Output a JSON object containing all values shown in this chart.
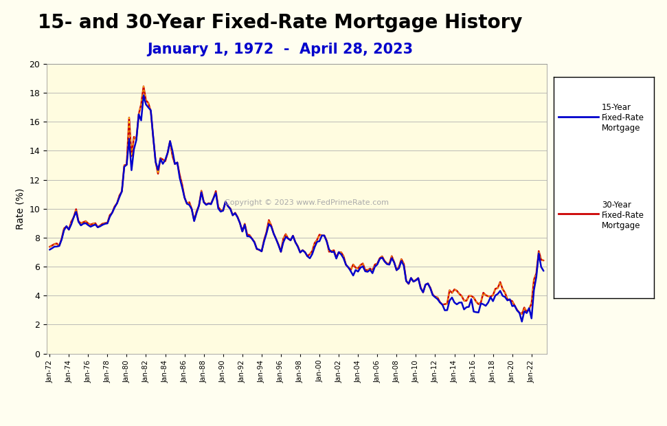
{
  "title": "15- and 30-Year Fixed-Rate Mortgage History",
  "subtitle": "January 1, 1972  -  April 28, 2023",
  "ylabel": "Rate (%)",
  "background_color": "#FFFEF0",
  "plot_bg_color": "#FFFCE0",
  "title_fontsize": 20,
  "subtitle_fontsize": 15,
  "subtitle_color": "#0000CC",
  "ylabel_fontsize": 10,
  "copyright_text": "Copyright © 2023 www.FedPrimeRate.com",
  "ylim": [
    0,
    20
  ],
  "yticks": [
    0,
    2,
    4,
    6,
    8,
    10,
    12,
    14,
    16,
    18,
    20
  ],
  "color_15yr": "#0000CC",
  "color_30yr": "#CC0000",
  "color_30yr_dots": "#FFD700",
  "legend_15yr": "15-Year\nFixed-Rate\nMortgage",
  "legend_30yr": "30-Year\nFixed-Rate\nMortgage",
  "data_15yr": [
    [
      1972,
      1,
      7.17
    ],
    [
      1972,
      4,
      7.27
    ],
    [
      1972,
      7,
      7.38
    ],
    [
      1972,
      10,
      7.39
    ],
    [
      1973,
      1,
      7.43
    ],
    [
      1973,
      4,
      7.87
    ],
    [
      1973,
      7,
      8.52
    ],
    [
      1973,
      10,
      8.8
    ],
    [
      1974,
      1,
      8.56
    ],
    [
      1974,
      4,
      8.92
    ],
    [
      1974,
      7,
      9.41
    ],
    [
      1974,
      10,
      9.79
    ],
    [
      1975,
      1,
      9.1
    ],
    [
      1975,
      4,
      8.85
    ],
    [
      1975,
      7,
      8.97
    ],
    [
      1975,
      10,
      9.0
    ],
    [
      1976,
      1,
      8.87
    ],
    [
      1976,
      4,
      8.76
    ],
    [
      1976,
      7,
      8.84
    ],
    [
      1976,
      10,
      8.91
    ],
    [
      1977,
      1,
      8.72
    ],
    [
      1977,
      4,
      8.79
    ],
    [
      1977,
      7,
      8.89
    ],
    [
      1977,
      10,
      8.96
    ],
    [
      1978,
      1,
      8.99
    ],
    [
      1978,
      4,
      9.45
    ],
    [
      1978,
      7,
      9.73
    ],
    [
      1978,
      10,
      10.09
    ],
    [
      1979,
      1,
      10.38
    ],
    [
      1979,
      4,
      10.81
    ],
    [
      1979,
      7,
      11.2
    ],
    [
      1979,
      10,
      12.9
    ],
    [
      1980,
      1,
      13.04
    ],
    [
      1980,
      4,
      14.82
    ],
    [
      1980,
      7,
      12.66
    ],
    [
      1980,
      10,
      14.1
    ],
    [
      1981,
      1,
      14.74
    ],
    [
      1981,
      4,
      16.52
    ],
    [
      1981,
      7,
      16.1
    ],
    [
      1981,
      10,
      17.83
    ],
    [
      1982,
      1,
      17.2
    ],
    [
      1982,
      4,
      16.99
    ],
    [
      1982,
      7,
      16.8
    ],
    [
      1982,
      10,
      14.96
    ],
    [
      1983,
      1,
      13.24
    ],
    [
      1983,
      4,
      12.68
    ],
    [
      1983,
      7,
      13.44
    ],
    [
      1983,
      10,
      13.1
    ],
    [
      1984,
      1,
      13.38
    ],
    [
      1984,
      4,
      13.86
    ],
    [
      1984,
      7,
      14.67
    ],
    [
      1984,
      10,
      13.99
    ],
    [
      1985,
      1,
      13.09
    ],
    [
      1985,
      4,
      13.19
    ],
    [
      1985,
      7,
      12.13
    ],
    [
      1985,
      10,
      11.48
    ],
    [
      1986,
      1,
      10.77
    ],
    [
      1986,
      4,
      10.35
    ],
    [
      1986,
      7,
      10.26
    ],
    [
      1986,
      10,
      9.97
    ],
    [
      1987,
      1,
      9.15
    ],
    [
      1987,
      4,
      9.71
    ],
    [
      1987,
      7,
      10.22
    ],
    [
      1987,
      10,
      11.13
    ],
    [
      1988,
      1,
      10.44
    ],
    [
      1988,
      4,
      10.27
    ],
    [
      1988,
      7,
      10.36
    ],
    [
      1988,
      10,
      10.31
    ],
    [
      1989,
      1,
      10.72
    ],
    [
      1989,
      4,
      11.09
    ],
    [
      1989,
      7,
      10.02
    ],
    [
      1989,
      10,
      9.8
    ],
    [
      1990,
      1,
      9.87
    ],
    [
      1990,
      4,
      10.48
    ],
    [
      1990,
      7,
      10.18
    ],
    [
      1990,
      10,
      9.99
    ],
    [
      1991,
      1,
      9.55
    ],
    [
      1991,
      4,
      9.69
    ],
    [
      1991,
      7,
      9.41
    ],
    [
      1991,
      10,
      9.01
    ],
    [
      1992,
      1,
      8.43
    ],
    [
      1992,
      4,
      8.89
    ],
    [
      1992,
      7,
      8.1
    ],
    [
      1992,
      10,
      8.09
    ],
    [
      1993,
      1,
      7.93
    ],
    [
      1993,
      4,
      7.68
    ],
    [
      1993,
      7,
      7.23
    ],
    [
      1993,
      10,
      7.17
    ],
    [
      1994,
      1,
      7.06
    ],
    [
      1994,
      4,
      7.74
    ],
    [
      1994,
      7,
      8.29
    ],
    [
      1994,
      10,
      8.93
    ],
    [
      1995,
      1,
      8.77
    ],
    [
      1995,
      4,
      8.28
    ],
    [
      1995,
      7,
      7.91
    ],
    [
      1995,
      10,
      7.48
    ],
    [
      1996,
      1,
      7.03
    ],
    [
      1996,
      4,
      7.68
    ],
    [
      1996,
      7,
      8.05
    ],
    [
      1996,
      10,
      7.94
    ],
    [
      1997,
      1,
      7.82
    ],
    [
      1997,
      4,
      8.13
    ],
    [
      1997,
      7,
      7.69
    ],
    [
      1997,
      10,
      7.38
    ],
    [
      1998,
      1,
      6.98
    ],
    [
      1998,
      4,
      7.13
    ],
    [
      1998,
      7,
      7.0
    ],
    [
      1998,
      10,
      6.72
    ],
    [
      1999,
      1,
      6.58
    ],
    [
      1999,
      4,
      6.87
    ],
    [
      1999,
      7,
      7.35
    ],
    [
      1999,
      10,
      7.72
    ],
    [
      2000,
      1,
      7.76
    ],
    [
      2000,
      4,
      8.15
    ],
    [
      2000,
      7,
      8.15
    ],
    [
      2000,
      10,
      7.74
    ],
    [
      2001,
      1,
      7.19
    ],
    [
      2001,
      4,
      7.01
    ],
    [
      2001,
      7,
      7.03
    ],
    [
      2001,
      10,
      6.56
    ],
    [
      2002,
      1,
      7.0
    ],
    [
      2002,
      4,
      6.85
    ],
    [
      2002,
      7,
      6.58
    ],
    [
      2002,
      10,
      6.13
    ],
    [
      2003,
      1,
      5.95
    ],
    [
      2003,
      4,
      5.68
    ],
    [
      2003,
      7,
      5.39
    ],
    [
      2003,
      10,
      5.77
    ],
    [
      2004,
      1,
      5.66
    ],
    [
      2004,
      4,
      5.93
    ],
    [
      2004,
      7,
      6.02
    ],
    [
      2004,
      10,
      5.68
    ],
    [
      2005,
      1,
      5.65
    ],
    [
      2005,
      4,
      5.79
    ],
    [
      2005,
      7,
      5.55
    ],
    [
      2005,
      10,
      6.0
    ],
    [
      2006,
      1,
      6.15
    ],
    [
      2006,
      4,
      6.53
    ],
    [
      2006,
      7,
      6.63
    ],
    [
      2006,
      10,
      6.36
    ],
    [
      2007,
      1,
      6.18
    ],
    [
      2007,
      4,
      6.14
    ],
    [
      2007,
      7,
      6.59
    ],
    [
      2007,
      10,
      6.29
    ],
    [
      2008,
      1,
      5.76
    ],
    [
      2008,
      4,
      5.89
    ],
    [
      2008,
      7,
      6.4
    ],
    [
      2008,
      10,
      6.07
    ],
    [
      2009,
      1,
      5.01
    ],
    [
      2009,
      4,
      4.83
    ],
    [
      2009,
      7,
      5.22
    ],
    [
      2009,
      10,
      4.97
    ],
    [
      2010,
      1,
      5.05
    ],
    [
      2010,
      4,
      5.21
    ],
    [
      2010,
      7,
      4.51
    ],
    [
      2010,
      10,
      4.23
    ],
    [
      2011,
      1,
      4.76
    ],
    [
      2011,
      4,
      4.84
    ],
    [
      2011,
      7,
      4.51
    ],
    [
      2011,
      10,
      4.04
    ],
    [
      2012,
      1,
      3.89
    ],
    [
      2012,
      4,
      3.76
    ],
    [
      2012,
      7,
      3.53
    ],
    [
      2012,
      10,
      3.38
    ],
    [
      2013,
      1,
      2.99
    ],
    [
      2013,
      4,
      3.0
    ],
    [
      2013,
      7,
      3.66
    ],
    [
      2013,
      10,
      3.87
    ],
    [
      2014,
      1,
      3.53
    ],
    [
      2014,
      4,
      3.4
    ],
    [
      2014,
      7,
      3.52
    ],
    [
      2014,
      10,
      3.53
    ],
    [
      2015,
      1,
      3.05
    ],
    [
      2015,
      4,
      3.2
    ],
    [
      2015,
      7,
      3.23
    ],
    [
      2015,
      10,
      3.76
    ],
    [
      2016,
      1,
      2.9
    ],
    [
      2016,
      4,
      2.86
    ],
    [
      2016,
      7,
      2.84
    ],
    [
      2016,
      10,
      3.47
    ],
    [
      2017,
      1,
      3.4
    ],
    [
      2017,
      4,
      3.3
    ],
    [
      2017,
      7,
      3.52
    ],
    [
      2017,
      10,
      3.9
    ],
    [
      2018,
      1,
      3.62
    ],
    [
      2018,
      4,
      4.01
    ],
    [
      2018,
      7,
      4.12
    ],
    [
      2018,
      10,
      4.33
    ],
    [
      2019,
      1,
      3.99
    ],
    [
      2019,
      4,
      3.91
    ],
    [
      2019,
      7,
      3.67
    ],
    [
      2019,
      10,
      3.75
    ],
    [
      2020,
      1,
      3.28
    ],
    [
      2020,
      4,
      3.31
    ],
    [
      2020,
      7,
      2.98
    ],
    [
      2020,
      10,
      2.81
    ],
    [
      2021,
      1,
      2.21
    ],
    [
      2021,
      4,
      2.92
    ],
    [
      2021,
      7,
      2.8
    ],
    [
      2021,
      10,
      3.14
    ],
    [
      2022,
      1,
      2.43
    ],
    [
      2022,
      4,
      4.38
    ],
    [
      2022,
      7,
      5.3
    ],
    [
      2022,
      10,
      6.92
    ],
    [
      2023,
      1,
      5.98
    ],
    [
      2023,
      4,
      5.71
    ]
  ],
  "data_30yr": [
    [
      1972,
      1,
      7.37
    ],
    [
      1972,
      4,
      7.46
    ],
    [
      1972,
      7,
      7.56
    ],
    [
      1972,
      10,
      7.6
    ],
    [
      1973,
      1,
      7.44
    ],
    [
      1973,
      4,
      7.93
    ],
    [
      1973,
      7,
      8.64
    ],
    [
      1973,
      10,
      8.77
    ],
    [
      1974,
      1,
      8.56
    ],
    [
      1974,
      4,
      9.11
    ],
    [
      1974,
      7,
      9.41
    ],
    [
      1974,
      10,
      9.97
    ],
    [
      1975,
      1,
      9.13
    ],
    [
      1975,
      4,
      9.0
    ],
    [
      1975,
      7,
      9.07
    ],
    [
      1975,
      10,
      9.14
    ],
    [
      1976,
      1,
      8.98
    ],
    [
      1976,
      4,
      8.9
    ],
    [
      1976,
      7,
      8.97
    ],
    [
      1976,
      10,
      9.0
    ],
    [
      1977,
      1,
      8.72
    ],
    [
      1977,
      4,
      8.85
    ],
    [
      1977,
      7,
      8.97
    ],
    [
      1977,
      10,
      9.01
    ],
    [
      1978,
      1,
      9.02
    ],
    [
      1978,
      4,
      9.56
    ],
    [
      1978,
      7,
      9.73
    ],
    [
      1978,
      10,
      10.16
    ],
    [
      1979,
      1,
      10.38
    ],
    [
      1979,
      4,
      10.92
    ],
    [
      1979,
      7,
      11.2
    ],
    [
      1979,
      10,
      13.0
    ],
    [
      1980,
      1,
      13.04
    ],
    [
      1980,
      4,
      16.29
    ],
    [
      1980,
      7,
      13.64
    ],
    [
      1980,
      10,
      14.96
    ],
    [
      1981,
      1,
      14.8
    ],
    [
      1981,
      4,
      16.52
    ],
    [
      1981,
      7,
      17.22
    ],
    [
      1981,
      10,
      18.45
    ],
    [
      1982,
      1,
      17.48
    ],
    [
      1982,
      4,
      17.3
    ],
    [
      1982,
      7,
      16.72
    ],
    [
      1982,
      10,
      14.94
    ],
    [
      1983,
      1,
      13.24
    ],
    [
      1983,
      4,
      12.42
    ],
    [
      1983,
      7,
      13.5
    ],
    [
      1983,
      10,
      13.4
    ],
    [
      1984,
      1,
      13.28
    ],
    [
      1984,
      4,
      13.86
    ],
    [
      1984,
      7,
      14.67
    ],
    [
      1984,
      10,
      13.64
    ],
    [
      1985,
      1,
      13.09
    ],
    [
      1985,
      4,
      13.19
    ],
    [
      1985,
      7,
      12.34
    ],
    [
      1985,
      10,
      11.68
    ],
    [
      1986,
      1,
      10.77
    ],
    [
      1986,
      4,
      10.35
    ],
    [
      1986,
      7,
      10.45
    ],
    [
      1986,
      10,
      9.97
    ],
    [
      1987,
      1,
      9.18
    ],
    [
      1987,
      4,
      9.82
    ],
    [
      1987,
      7,
      10.22
    ],
    [
      1987,
      10,
      11.24
    ],
    [
      1988,
      1,
      10.47
    ],
    [
      1988,
      4,
      10.3
    ],
    [
      1988,
      7,
      10.38
    ],
    [
      1988,
      10,
      10.35
    ],
    [
      1989,
      1,
      10.72
    ],
    [
      1989,
      4,
      11.22
    ],
    [
      1989,
      7,
      10.12
    ],
    [
      1989,
      10,
      9.9
    ],
    [
      1990,
      1,
      9.87
    ],
    [
      1990,
      4,
      10.48
    ],
    [
      1990,
      7,
      10.19
    ],
    [
      1990,
      10,
      10.02
    ],
    [
      1991,
      1,
      9.55
    ],
    [
      1991,
      4,
      9.72
    ],
    [
      1991,
      7,
      9.44
    ],
    [
      1991,
      10,
      9.01
    ],
    [
      1992,
      1,
      8.43
    ],
    [
      1992,
      4,
      8.96
    ],
    [
      1992,
      7,
      8.22
    ],
    [
      1992,
      10,
      8.18
    ],
    [
      1993,
      1,
      7.93
    ],
    [
      1993,
      4,
      7.71
    ],
    [
      1993,
      7,
      7.22
    ],
    [
      1993,
      10,
      7.16
    ],
    [
      1994,
      1,
      7.06
    ],
    [
      1994,
      4,
      7.84
    ],
    [
      1994,
      7,
      8.38
    ],
    [
      1994,
      10,
      9.22
    ],
    [
      1995,
      1,
      8.83
    ],
    [
      1995,
      4,
      8.28
    ],
    [
      1995,
      7,
      7.91
    ],
    [
      1995,
      10,
      7.53
    ],
    [
      1996,
      1,
      7.03
    ],
    [
      1996,
      4,
      7.93
    ],
    [
      1996,
      7,
      8.25
    ],
    [
      1996,
      10,
      7.94
    ],
    [
      1997,
      1,
      7.82
    ],
    [
      1997,
      4,
      8.14
    ],
    [
      1997,
      7,
      7.69
    ],
    [
      1997,
      10,
      7.42
    ],
    [
      1998,
      1,
      6.99
    ],
    [
      1998,
      4,
      7.14
    ],
    [
      1998,
      7,
      7.0
    ],
    [
      1998,
      10,
      6.72
    ],
    [
      1999,
      1,
      6.87
    ],
    [
      1999,
      4,
      7.08
    ],
    [
      1999,
      7,
      7.63
    ],
    [
      1999,
      10,
      7.85
    ],
    [
      2000,
      1,
      8.21
    ],
    [
      2000,
      4,
      8.15
    ],
    [
      2000,
      7,
      8.15
    ],
    [
      2000,
      10,
      7.8
    ],
    [
      2001,
      1,
      7.03
    ],
    [
      2001,
      4,
      7.08
    ],
    [
      2001,
      7,
      7.13
    ],
    [
      2001,
      10,
      6.62
    ],
    [
      2002,
      1,
      7.0
    ],
    [
      2002,
      4,
      6.99
    ],
    [
      2002,
      7,
      6.72
    ],
    [
      2002,
      10,
      6.13
    ],
    [
      2003,
      1,
      5.94
    ],
    [
      2003,
      4,
      5.78
    ],
    [
      2003,
      7,
      6.15
    ],
    [
      2003,
      10,
      5.93
    ],
    [
      2004,
      1,
      5.87
    ],
    [
      2004,
      4,
      6.11
    ],
    [
      2004,
      7,
      6.22
    ],
    [
      2004,
      10,
      5.77
    ],
    [
      2005,
      1,
      5.77
    ],
    [
      2005,
      4,
      5.87
    ],
    [
      2005,
      7,
      5.73
    ],
    [
      2005,
      10,
      6.15
    ],
    [
      2006,
      1,
      6.21
    ],
    [
      2006,
      4,
      6.58
    ],
    [
      2006,
      7,
      6.71
    ],
    [
      2006,
      10,
      6.4
    ],
    [
      2007,
      1,
      6.22
    ],
    [
      2007,
      4,
      6.2
    ],
    [
      2007,
      7,
      6.73
    ],
    [
      2007,
      10,
      6.31
    ],
    [
      2008,
      1,
      5.76
    ],
    [
      2008,
      4,
      5.99
    ],
    [
      2008,
      7,
      6.52
    ],
    [
      2008,
      10,
      6.2
    ],
    [
      2009,
      1,
      5.01
    ],
    [
      2009,
      4,
      4.81
    ],
    [
      2009,
      7,
      5.22
    ],
    [
      2009,
      10,
      4.97
    ],
    [
      2010,
      1,
      5.09
    ],
    [
      2010,
      4,
      5.21
    ],
    [
      2010,
      7,
      4.56
    ],
    [
      2010,
      10,
      4.23
    ],
    [
      2011,
      1,
      4.76
    ],
    [
      2011,
      4,
      4.84
    ],
    [
      2011,
      7,
      4.55
    ],
    [
      2011,
      10,
      4.07
    ],
    [
      2012,
      1,
      3.92
    ],
    [
      2012,
      4,
      3.87
    ],
    [
      2012,
      7,
      3.55
    ],
    [
      2012,
      10,
      3.38
    ],
    [
      2013,
      1,
      3.41
    ],
    [
      2013,
      4,
      3.45
    ],
    [
      2013,
      7,
      4.37
    ],
    [
      2013,
      10,
      4.19
    ],
    [
      2014,
      1,
      4.43
    ],
    [
      2014,
      4,
      4.34
    ],
    [
      2014,
      7,
      4.13
    ],
    [
      2014,
      10,
      3.98
    ],
    [
      2015,
      1,
      3.66
    ],
    [
      2015,
      4,
      3.65
    ],
    [
      2015,
      7,
      3.98
    ],
    [
      2015,
      10,
      3.98
    ],
    [
      2016,
      1,
      3.87
    ],
    [
      2016,
      4,
      3.59
    ],
    [
      2016,
      7,
      3.41
    ],
    [
      2016,
      10,
      3.54
    ],
    [
      2017,
      1,
      4.2
    ],
    [
      2017,
      4,
      4.03
    ],
    [
      2017,
      7,
      3.96
    ],
    [
      2017,
      10,
      3.94
    ],
    [
      2018,
      1,
      4.03
    ],
    [
      2018,
      4,
      4.47
    ],
    [
      2018,
      7,
      4.53
    ],
    [
      2018,
      10,
      4.94
    ],
    [
      2019,
      1,
      4.46
    ],
    [
      2019,
      4,
      4.2
    ],
    [
      2019,
      7,
      3.75
    ],
    [
      2019,
      10,
      3.69
    ],
    [
      2020,
      1,
      3.62
    ],
    [
      2020,
      4,
      3.31
    ],
    [
      2020,
      7,
      3.02
    ],
    [
      2020,
      10,
      2.81
    ],
    [
      2021,
      1,
      2.74
    ],
    [
      2021,
      4,
      3.18
    ],
    [
      2021,
      7,
      2.87
    ],
    [
      2021,
      10,
      3.09
    ],
    [
      2022,
      1,
      3.45
    ],
    [
      2022,
      4,
      5.1
    ],
    [
      2022,
      7,
      5.54
    ],
    [
      2022,
      10,
      7.08
    ],
    [
      2023,
      1,
      6.48
    ],
    [
      2023,
      4,
      6.43
    ]
  ]
}
